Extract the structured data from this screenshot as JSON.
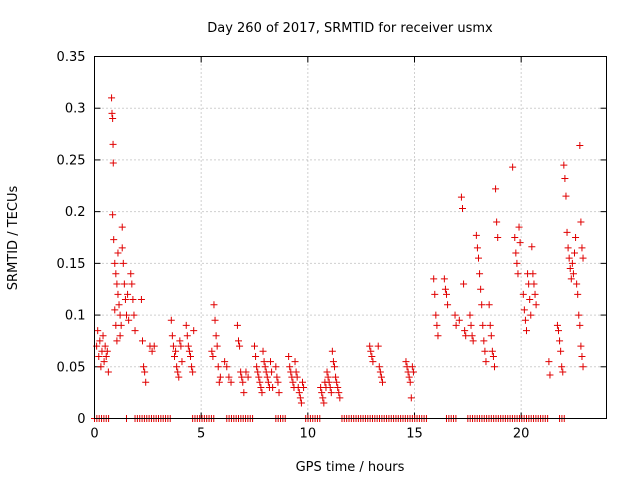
{
  "chart_data": {
    "type": "scatter",
    "title": "Day 260 of 2017, SRMTID for receiver usmx",
    "xlabel": "GPS time / hours",
    "ylabel": "SRMTID / TECUs",
    "xlim": [
      0,
      24
    ],
    "ylim": [
      0,
      0.35
    ],
    "x_ticks": [
      0,
      5,
      10,
      15,
      20
    ],
    "x_tick_labels": [
      "0",
      "5",
      "10",
      "15",
      "20"
    ],
    "y_ticks": [
      0,
      0.05,
      0.1,
      0.15,
      0.2,
      0.25,
      0.3,
      0.35
    ],
    "y_tick_labels": [
      "0",
      "0.05",
      "0.1",
      "0.15",
      "0.2",
      "0.25",
      "0.3",
      "0.35"
    ],
    "grid": true,
    "marker": "plus",
    "color": "#e00000",
    "series": [
      {
        "name": "SRMTID",
        "points": [
          [
            0.1,
            0.07
          ],
          [
            0.15,
            0.085
          ],
          [
            0.2,
            0.06
          ],
          [
            0.25,
            0.075
          ],
          [
            0.3,
            0.05
          ],
          [
            0.35,
            0.065
          ],
          [
            0.4,
            0.08
          ],
          [
            0.45,
            0.055
          ],
          [
            0.5,
            0.07
          ],
          [
            0.55,
            0.06
          ],
          [
            0.6,
            0.065
          ],
          [
            0.65,
            0.045
          ],
          [
            0.8,
            0.31
          ],
          [
            0.82,
            0.295
          ],
          [
            0.85,
            0.29
          ],
          [
            0.87,
            0.265
          ],
          [
            0.88,
            0.247
          ],
          [
            0.85,
            0.197
          ],
          [
            0.9,
            0.173
          ],
          [
            0.95,
            0.15
          ],
          [
            1.0,
            0.14
          ],
          [
            1.05,
            0.13
          ],
          [
            1.1,
            0.12
          ],
          [
            1.15,
            0.11
          ],
          [
            1.2,
            0.1
          ],
          [
            1.25,
            0.09
          ],
          [
            1.3,
            0.185
          ],
          [
            1.3,
            0.165
          ],
          [
            1.35,
            0.15
          ],
          [
            1.4,
            0.13
          ],
          [
            1.45,
            0.115
          ],
          [
            1.5,
            0.1
          ],
          [
            1.55,
            0.12
          ],
          [
            1.6,
            0.095
          ],
          [
            1.7,
            0.14
          ],
          [
            1.75,
            0.13
          ],
          [
            1.8,
            0.115
          ],
          [
            1.85,
            0.1
          ],
          [
            1.9,
            0.085
          ],
          [
            0.95,
            0.105
          ],
          [
            1.0,
            0.09
          ],
          [
            1.05,
            0.075
          ],
          [
            1.1,
            0.16
          ],
          [
            1.2,
            0.08
          ],
          [
            2.2,
            0.115
          ],
          [
            2.25,
            0.075
          ],
          [
            2.3,
            0.05
          ],
          [
            2.35,
            0.045
          ],
          [
            2.4,
            0.035
          ],
          [
            2.6,
            0.07
          ],
          [
            2.7,
            0.065
          ],
          [
            2.8,
            0.07
          ],
          [
            3.6,
            0.095
          ],
          [
            3.65,
            0.08
          ],
          [
            3.7,
            0.07
          ],
          [
            3.75,
            0.06
          ],
          [
            3.8,
            0.065
          ],
          [
            3.85,
            0.05
          ],
          [
            3.9,
            0.045
          ],
          [
            3.95,
            0.04
          ],
          [
            4.0,
            0.075
          ],
          [
            4.05,
            0.07
          ],
          [
            4.1,
            0.055
          ],
          [
            4.3,
            0.09
          ],
          [
            4.35,
            0.08
          ],
          [
            4.4,
            0.07
          ],
          [
            4.45,
            0.065
          ],
          [
            4.5,
            0.06
          ],
          [
            4.55,
            0.05
          ],
          [
            4.6,
            0.045
          ],
          [
            4.65,
            0.085
          ],
          [
            5.5,
            0.065
          ],
          [
            5.55,
            0.06
          ],
          [
            5.6,
            0.11
          ],
          [
            5.65,
            0.095
          ],
          [
            5.7,
            0.08
          ],
          [
            5.75,
            0.07
          ],
          [
            5.8,
            0.05
          ],
          [
            5.85,
            0.035
          ],
          [
            5.9,
            0.04
          ],
          [
            6.1,
            0.055
          ],
          [
            6.2,
            0.05
          ],
          [
            6.3,
            0.04
          ],
          [
            6.4,
            0.035
          ],
          [
            6.7,
            0.09
          ],
          [
            6.75,
            0.075
          ],
          [
            6.8,
            0.07
          ],
          [
            6.85,
            0.045
          ],
          [
            6.9,
            0.04
          ],
          [
            6.95,
            0.035
          ],
          [
            7.0,
            0.025
          ],
          [
            7.1,
            0.045
          ],
          [
            7.2,
            0.04
          ],
          [
            7.5,
            0.07
          ],
          [
            7.55,
            0.06
          ],
          [
            7.6,
            0.05
          ],
          [
            7.65,
            0.045
          ],
          [
            7.7,
            0.04
          ],
          [
            7.75,
            0.035
          ],
          [
            7.8,
            0.03
          ],
          [
            7.85,
            0.025
          ],
          [
            7.9,
            0.065
          ],
          [
            7.95,
            0.055
          ],
          [
            8.0,
            0.05
          ],
          [
            8.05,
            0.045
          ],
          [
            8.1,
            0.04
          ],
          [
            8.15,
            0.035
          ],
          [
            8.2,
            0.03
          ],
          [
            8.25,
            0.055
          ],
          [
            8.3,
            0.045
          ],
          [
            8.35,
            0.03
          ],
          [
            8.5,
            0.05
          ],
          [
            8.55,
            0.04
          ],
          [
            8.6,
            0.035
          ],
          [
            8.65,
            0.025
          ],
          [
            9.1,
            0.06
          ],
          [
            9.15,
            0.05
          ],
          [
            9.2,
            0.045
          ],
          [
            9.25,
            0.04
          ],
          [
            9.3,
            0.035
          ],
          [
            9.35,
            0.03
          ],
          [
            9.4,
            0.055
          ],
          [
            9.45,
            0.045
          ],
          [
            9.5,
            0.04
          ],
          [
            9.55,
            0.03
          ],
          [
            9.6,
            0.025
          ],
          [
            9.65,
            0.02
          ],
          [
            9.7,
            0.015
          ],
          [
            9.75,
            0.035
          ],
          [
            9.8,
            0.03
          ],
          [
            10.6,
            0.03
          ],
          [
            10.65,
            0.025
          ],
          [
            10.7,
            0.02
          ],
          [
            10.75,
            0.015
          ],
          [
            10.8,
            0.035
          ],
          [
            10.85,
            0.03
          ],
          [
            10.9,
            0.045
          ],
          [
            10.95,
            0.04
          ],
          [
            11.0,
            0.035
          ],
          [
            11.05,
            0.03
          ],
          [
            11.1,
            0.025
          ],
          [
            11.15,
            0.065
          ],
          [
            11.2,
            0.055
          ],
          [
            11.25,
            0.05
          ],
          [
            11.3,
            0.04
          ],
          [
            11.35,
            0.035
          ],
          [
            11.4,
            0.03
          ],
          [
            11.45,
            0.025
          ],
          [
            11.5,
            0.02
          ],
          [
            12.9,
            0.07
          ],
          [
            12.95,
            0.065
          ],
          [
            13.0,
            0.06
          ],
          [
            13.05,
            0.055
          ],
          [
            13.3,
            0.07
          ],
          [
            13.35,
            0.05
          ],
          [
            13.4,
            0.045
          ],
          [
            13.45,
            0.04
          ],
          [
            13.5,
            0.035
          ],
          [
            14.6,
            0.055
          ],
          [
            14.65,
            0.05
          ],
          [
            14.7,
            0.045
          ],
          [
            14.75,
            0.04
          ],
          [
            14.8,
            0.035
          ],
          [
            14.85,
            0.02
          ],
          [
            14.9,
            0.05
          ],
          [
            14.95,
            0.045
          ],
          [
            15.9,
            0.135
          ],
          [
            15.95,
            0.12
          ],
          [
            16.0,
            0.1
          ],
          [
            16.05,
            0.09
          ],
          [
            16.1,
            0.08
          ],
          [
            16.4,
            0.135
          ],
          [
            16.45,
            0.125
          ],
          [
            16.5,
            0.12
          ],
          [
            16.55,
            0.11
          ],
          [
            16.9,
            0.1
          ],
          [
            16.95,
            0.09
          ],
          [
            17.1,
            0.095
          ],
          [
            17.2,
            0.214
          ],
          [
            17.25,
            0.203
          ],
          [
            17.3,
            0.13
          ],
          [
            17.35,
            0.085
          ],
          [
            17.4,
            0.08
          ],
          [
            17.6,
            0.1
          ],
          [
            17.65,
            0.09
          ],
          [
            17.7,
            0.08
          ],
          [
            17.75,
            0.075
          ],
          [
            17.9,
            0.177
          ],
          [
            17.95,
            0.165
          ],
          [
            18.0,
            0.155
          ],
          [
            18.05,
            0.14
          ],
          [
            18.1,
            0.125
          ],
          [
            18.15,
            0.11
          ],
          [
            18.2,
            0.09
          ],
          [
            18.25,
            0.075
          ],
          [
            18.3,
            0.065
          ],
          [
            18.35,
            0.055
          ],
          [
            18.5,
            0.11
          ],
          [
            18.55,
            0.09
          ],
          [
            18.6,
            0.08
          ],
          [
            18.65,
            0.065
          ],
          [
            18.7,
            0.06
          ],
          [
            18.75,
            0.05
          ],
          [
            18.8,
            0.222
          ],
          [
            18.85,
            0.19
          ],
          [
            18.9,
            0.175
          ],
          [
            19.6,
            0.243
          ],
          [
            19.7,
            0.175
          ],
          [
            19.75,
            0.16
          ],
          [
            19.8,
            0.15
          ],
          [
            19.85,
            0.14
          ],
          [
            19.9,
            0.185
          ],
          [
            19.95,
            0.17
          ],
          [
            20.1,
            0.12
          ],
          [
            20.15,
            0.105
          ],
          [
            20.2,
            0.095
          ],
          [
            20.25,
            0.085
          ],
          [
            20.3,
            0.14
          ],
          [
            20.35,
            0.13
          ],
          [
            20.4,
            0.115
          ],
          [
            20.45,
            0.1
          ],
          [
            20.5,
            0.166
          ],
          [
            20.55,
            0.14
          ],
          [
            20.6,
            0.13
          ],
          [
            20.65,
            0.12
          ],
          [
            20.7,
            0.11
          ],
          [
            21.3,
            0.055
          ],
          [
            21.35,
            0.042
          ],
          [
            21.7,
            0.09
          ],
          [
            21.75,
            0.085
          ],
          [
            21.8,
            0.075
          ],
          [
            21.85,
            0.065
          ],
          [
            21.9,
            0.05
          ],
          [
            21.95,
            0.045
          ],
          [
            22.0,
            0.245
          ],
          [
            22.05,
            0.232
          ],
          [
            22.1,
            0.215
          ],
          [
            22.15,
            0.18
          ],
          [
            22.2,
            0.165
          ],
          [
            22.25,
            0.155
          ],
          [
            22.3,
            0.145
          ],
          [
            22.35,
            0.135
          ],
          [
            22.4,
            0.15
          ],
          [
            22.45,
            0.14
          ],
          [
            22.5,
            0.16
          ],
          [
            22.55,
            0.175
          ],
          [
            22.6,
            0.13
          ],
          [
            22.65,
            0.12
          ],
          [
            22.7,
            0.1
          ],
          [
            22.75,
            0.09
          ],
          [
            22.8,
            0.07
          ],
          [
            22.85,
            0.06
          ],
          [
            22.9,
            0.05
          ],
          [
            22.75,
            0.264
          ],
          [
            22.8,
            0.19
          ],
          [
            22.85,
            0.165
          ],
          [
            22.9,
            0.155
          ]
        ],
        "zero_ranges": [
          [
            0.0,
            0.75
          ],
          [
            1.5,
            1.6
          ],
          [
            1.9,
            3.6
          ],
          [
            4.6,
            5.6
          ],
          [
            6.2,
            7.5
          ],
          [
            8.5,
            9.0
          ],
          [
            9.9,
            10.6
          ],
          [
            11.6,
            15.6
          ],
          [
            16.5,
            17.0
          ],
          [
            17.5,
            21.3
          ],
          [
            21.8,
            22.1
          ]
        ]
      }
    ]
  }
}
